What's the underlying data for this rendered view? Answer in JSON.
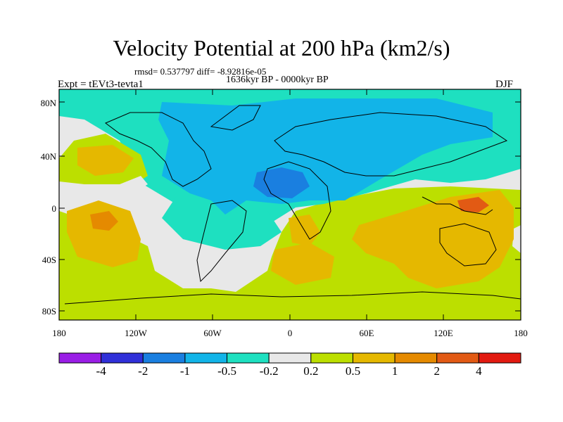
{
  "title": "Velocity Potential at 200 hPa (km2/s)",
  "stats_line": "rmsd= 0.537797 diff= -8.92816e-05",
  "period_line": "1636kyr BP - 0000kyr BP",
  "left_label": "Expt = tEVt3-tevta1",
  "right_label": "DJF",
  "lat_ticks": [
    "80N",
    "40N",
    "0",
    "40S",
    "80S"
  ],
  "lon_ticks": [
    "180",
    "120W",
    "60W",
    "0",
    "60E",
    "120E",
    "180"
  ],
  "colorbar": {
    "colors": [
      "#9a1ee6",
      "#3030d8",
      "#1a7fe0",
      "#12b4e8",
      "#1ee0c0",
      "#e8e8e8",
      "#bcdf00",
      "#e5b800",
      "#e58a00",
      "#e25a14",
      "#e21a10"
    ],
    "labels": [
      "-4",
      "-2",
      "-1",
      "-0.5",
      "-0.2",
      "0.2",
      "0.5",
      "1",
      "2",
      "4"
    ]
  }
}
